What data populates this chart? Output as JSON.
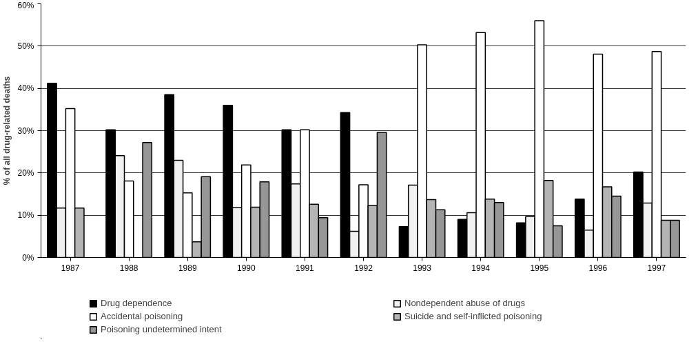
{
  "chart_data": {
    "type": "bar",
    "ylabel": "% of all drug-related deaths",
    "categories": [
      "1987",
      "1988",
      "1989",
      "1990",
      "1991",
      "1992",
      "1993",
      "1994",
      "1995",
      "1996",
      "1997"
    ],
    "series": [
      {
        "name": "Drug dependence",
        "color": "#000000",
        "values": [
          41.2,
          30.2,
          38.5,
          36.0,
          30.2,
          34.3,
          7.3,
          9.0,
          8.2,
          13.8,
          20.2
        ]
      },
      {
        "name": "Nondependent abuse of drugs",
        "color": "#f0f0f0",
        "values": [
          11.7,
          24.1,
          23.0,
          11.8,
          17.4,
          6.2,
          17.1,
          10.6,
          9.7,
          6.5,
          12.9
        ]
      },
      {
        "name": "Accidental poisoning",
        "color": "#ffffff",
        "values": [
          35.2,
          18.1,
          15.3,
          21.9,
          30.2,
          17.2,
          50.3,
          53.2,
          56.0,
          48.1,
          48.7
        ]
      },
      {
        "name": "Suicide and self-inflicted poisoning",
        "color": "#b4b4b4",
        "values": [
          11.7,
          null,
          3.7,
          11.9,
          12.6,
          12.3,
          13.7,
          13.8,
          18.2,
          16.7,
          8.8
        ]
      },
      {
        "name": "Poisoning undetermined intent",
        "color": "#969696",
        "values": [
          null,
          27.2,
          19.1,
          17.9,
          9.4,
          29.6,
          11.3,
          13.0,
          7.5,
          14.5,
          8.8
        ]
      }
    ],
    "ylim": [
      0,
      60
    ],
    "yticks": [
      {
        "value": 0,
        "label": "0%"
      },
      {
        "value": 10,
        "label": "10%"
      },
      {
        "value": 20,
        "label": "20%"
      },
      {
        "value": 30,
        "label": "30%"
      },
      {
        "value": 40,
        "label": "40%"
      },
      {
        "value": 50,
        "label": "50%"
      },
      {
        "value": 60,
        "label": "60%"
      }
    ],
    "grid": "y",
    "legend": "bottom"
  }
}
